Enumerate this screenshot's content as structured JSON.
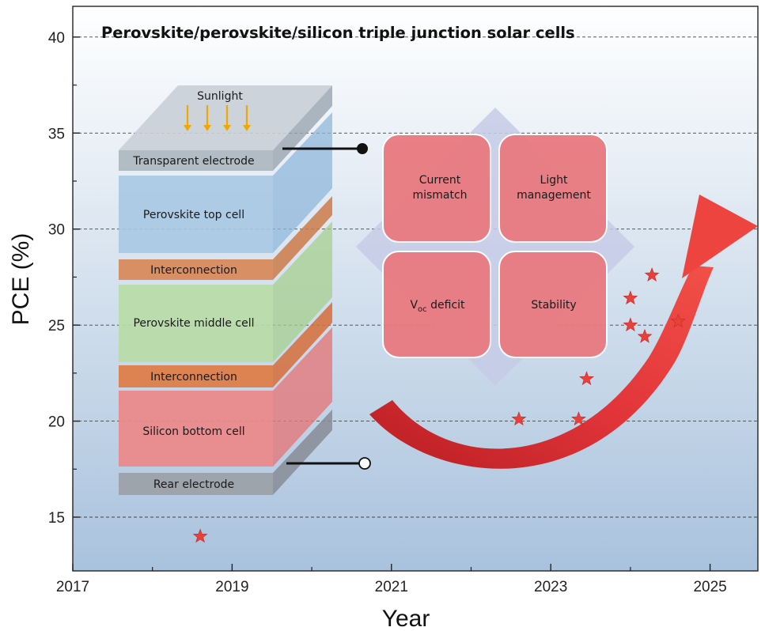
{
  "chart_data": {
    "type": "scatter",
    "title": "Perovskite/perovskite/silicon triple junction solar cells",
    "xlabel": "Year",
    "ylabel": "PCE (%)",
    "xlim": [
      2017,
      2025.6
    ],
    "ylim": [
      12.2,
      41.6
    ],
    "x_ticks": [
      "2017",
      "2019",
      "2021",
      "2023",
      "2025"
    ],
    "y_ticks": [
      "15",
      "20",
      "25",
      "30",
      "35",
      "40"
    ],
    "grid": "dashed horizontal",
    "points": [
      {
        "x": 2018.6,
        "y": 14.0
      },
      {
        "x": 2022.6,
        "y": 20.1
      },
      {
        "x": 2023.35,
        "y": 20.1
      },
      {
        "x": 2023.45,
        "y": 22.2
      },
      {
        "x": 2024.0,
        "y": 26.4
      },
      {
        "x": 2024.0,
        "y": 25.0
      },
      {
        "x": 2024.18,
        "y": 24.4
      },
      {
        "x": 2024.27,
        "y": 27.6
      },
      {
        "x": 2024.6,
        "y": 25.2
      }
    ],
    "marker_color": "#e8413a",
    "background_gradient": [
      "#ffffff",
      "#a9c2dd"
    ]
  },
  "device_stack": {
    "sunlight_label": "Sunlight",
    "layers": [
      {
        "label": "Transparent electrode",
        "color": "#b2bcc6"
      },
      {
        "label": "Perovskite top cell",
        "color": "#a7c7e4"
      },
      {
        "label": "Interconnection",
        "color": "#d98c5d"
      },
      {
        "label": "Perovskite middle cell",
        "color": "#b5dba3"
      },
      {
        "label": "Interconnection",
        "color": "#df7f4b"
      },
      {
        "label": "Silicon bottom cell",
        "color": "#ea8a8c"
      },
      {
        "label": "Rear electrode",
        "color": "#9ea3ab"
      }
    ]
  },
  "challenges": {
    "items": [
      {
        "line1": "Current",
        "line2": "mismatch"
      },
      {
        "line1": "Light",
        "line2": "management"
      },
      {
        "line1": "V",
        "sub": "oc",
        "line2": " deficit"
      },
      {
        "line1": "Stability"
      }
    ],
    "tile_color": "#e97a80",
    "diamond_color": "#c6cbe6"
  },
  "arrow_color": "#e8413a"
}
